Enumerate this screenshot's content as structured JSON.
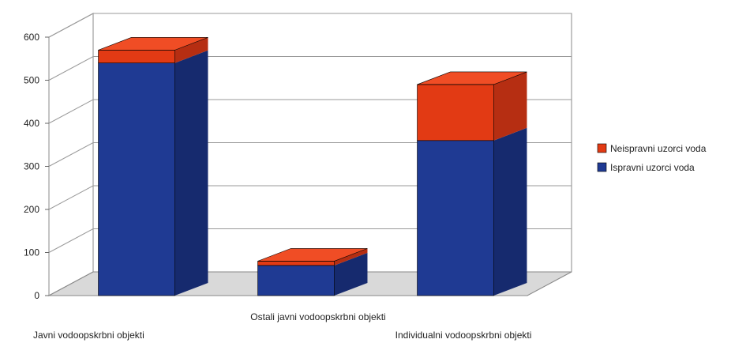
{
  "chart_data": {
    "type": "bar",
    "stacked": true,
    "three_d": true,
    "title": "",
    "xlabel": "",
    "ylabel": "",
    "categories": [
      "Javni vodoopskrbni objekti",
      "Ostali javni vodoopskrbni objekti",
      "Individualni vodoopskrbni objekti"
    ],
    "series": [
      {
        "name": "Ispravni uzorci voda",
        "values": [
          540,
          70,
          360
        ]
      },
      {
        "name": "Neispravni uzorci voda",
        "values": [
          30,
          10,
          130
        ]
      }
    ],
    "ylim": [
      0,
      600
    ],
    "y_ticks": [
      "0",
      "100",
      "200",
      "300",
      "400",
      "500",
      "600"
    ],
    "grid": true,
    "legend_position": "right",
    "colors": {
      "series": [
        "#1f3a93",
        "#e23a14"
      ],
      "series_top": [
        "#3352b0",
        "#f04d25"
      ],
      "series_side": [
        "#162a6e",
        "#b62e12"
      ],
      "wall": "#ffffff",
      "floor": "#d9d9d9",
      "grid": "#9a9a9a"
    }
  }
}
